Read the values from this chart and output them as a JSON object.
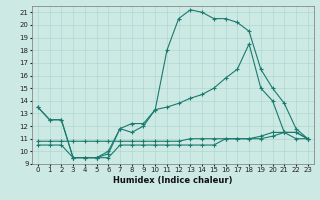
{
  "xlabel": "Humidex (Indice chaleur)",
  "bg_color": "#cce9e4",
  "grid_color": "#b0d8d0",
  "line_color": "#1a7a6e",
  "xlim": [
    -0.5,
    23.5
  ],
  "ylim": [
    9,
    21.5
  ],
  "yticks": [
    9,
    10,
    11,
    12,
    13,
    14,
    15,
    16,
    17,
    18,
    19,
    20,
    21
  ],
  "xticks": [
    0,
    1,
    2,
    3,
    4,
    5,
    6,
    7,
    8,
    9,
    10,
    11,
    12,
    13,
    14,
    15,
    16,
    17,
    18,
    19,
    20,
    21,
    22,
    23
  ],
  "series": [
    {
      "x": [
        0,
        1,
        2,
        3,
        4,
        5,
        6,
        7,
        8,
        9,
        10,
        11,
        12,
        13,
        14,
        15,
        16,
        17,
        18,
        19,
        20,
        21,
        22,
        23
      ],
      "y": [
        13.5,
        12.5,
        12.5,
        9.5,
        9.5,
        9.5,
        10.0,
        11.8,
        11.5,
        12.0,
        13.3,
        18.0,
        20.5,
        21.2,
        21.0,
        20.5,
        20.5,
        20.2,
        19.5,
        16.5,
        15.0,
        13.8,
        11.8,
        11.0
      ]
    },
    {
      "x": [
        0,
        1,
        2,
        3,
        4,
        5,
        6,
        7,
        8,
        9,
        10,
        11,
        12,
        13,
        14,
        15,
        16,
        17,
        18,
        19,
        20,
        21,
        22,
        23
      ],
      "y": [
        13.5,
        12.5,
        12.5,
        9.5,
        9.5,
        9.5,
        9.8,
        11.8,
        12.2,
        12.2,
        13.3,
        13.5,
        13.8,
        14.2,
        14.5,
        15.0,
        15.8,
        16.5,
        18.5,
        15.0,
        14.0,
        11.5,
        11.0,
        11.0
      ]
    },
    {
      "x": [
        0,
        1,
        2,
        3,
        4,
        5,
        6,
        7,
        8,
        9,
        10,
        11,
        12,
        13,
        14,
        15,
        16,
        17,
        18,
        19,
        20,
        21,
        22,
        23
      ],
      "y": [
        10.8,
        10.8,
        10.8,
        10.8,
        10.8,
        10.8,
        10.8,
        10.8,
        10.8,
        10.8,
        10.8,
        10.8,
        10.8,
        11.0,
        11.0,
        11.0,
        11.0,
        11.0,
        11.0,
        11.2,
        11.5,
        11.5,
        11.5,
        11.0
      ]
    },
    {
      "x": [
        0,
        1,
        2,
        3,
        4,
        5,
        6,
        7,
        8,
        9,
        10,
        11,
        12,
        13,
        14,
        15,
        16,
        17,
        18,
        19,
        20,
        21,
        22,
        23
      ],
      "y": [
        10.5,
        10.5,
        10.5,
        9.5,
        9.5,
        9.5,
        9.5,
        10.5,
        10.5,
        10.5,
        10.5,
        10.5,
        10.5,
        10.5,
        10.5,
        10.5,
        11.0,
        11.0,
        11.0,
        11.0,
        11.2,
        11.5,
        11.5,
        11.0
      ]
    }
  ]
}
